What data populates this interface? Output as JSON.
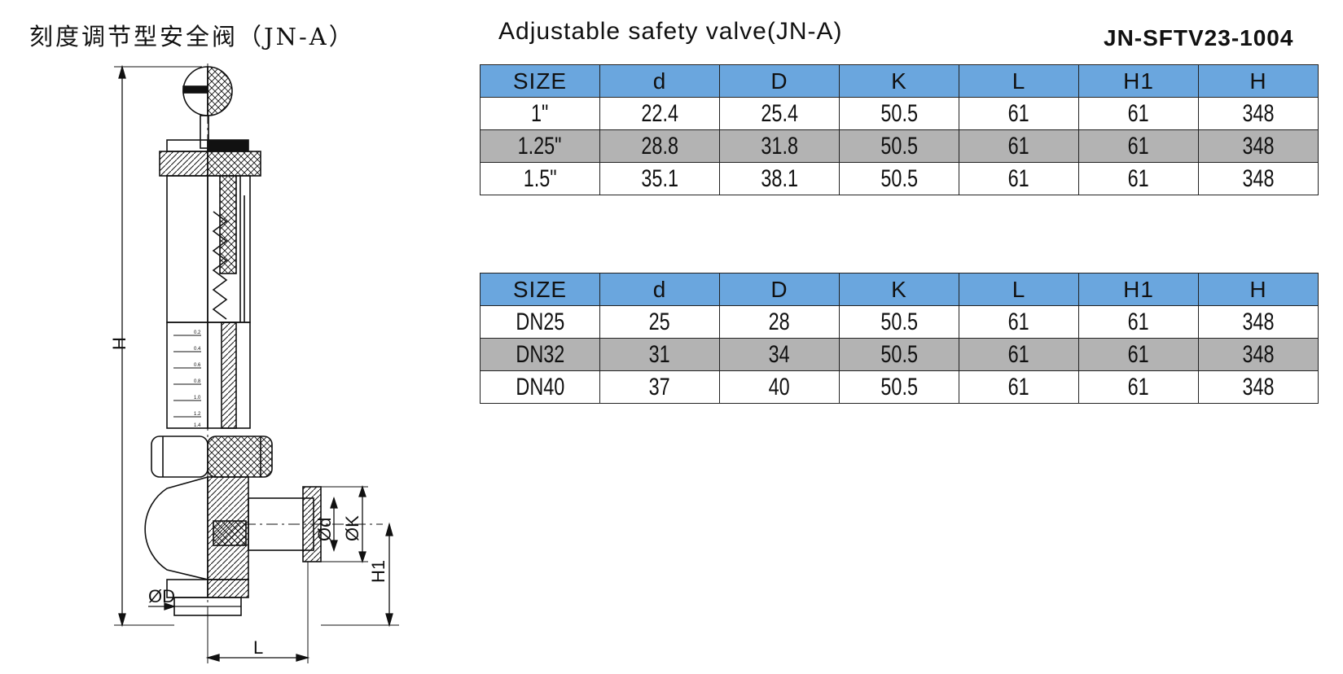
{
  "header": {
    "title_cn": "刻度调节型安全阀（JN-A）",
    "title_en": "Adjustable safety valve(JN-A)",
    "product_code": "JN-SFTV23-1004"
  },
  "colors": {
    "header_row": "#6aa6de",
    "alt_row": "#b3b3b3"
  },
  "drawing_labels": {
    "H": "H",
    "H1": "H1",
    "L": "L",
    "D": "ØD",
    "d": "Ød",
    "K": "ØK",
    "scale_marks": [
      "0.2",
      "0.4",
      "0.6",
      "0.8",
      "1.0",
      "1.2",
      "1.4"
    ]
  },
  "table1": {
    "headers": [
      "SIZE",
      "d",
      "D",
      "K",
      "L",
      "H1",
      "H"
    ],
    "rows": [
      [
        "1\"",
        "22.4",
        "25.4",
        "50.5",
        "61",
        "61",
        "348"
      ],
      [
        "1.25\"",
        "28.8",
        "31.8",
        "50.5",
        "61",
        "61",
        "348"
      ],
      [
        "1.5\"",
        "35.1",
        "38.1",
        "50.5",
        "61",
        "61",
        "348"
      ]
    ]
  },
  "table2": {
    "headers": [
      "SIZE",
      "d",
      "D",
      "K",
      "L",
      "H1",
      "H"
    ],
    "rows": [
      [
        "DN25",
        "25",
        "28",
        "50.5",
        "61",
        "61",
        "348"
      ],
      [
        "DN32",
        "31",
        "34",
        "50.5",
        "61",
        "61",
        "348"
      ],
      [
        "DN40",
        "37",
        "40",
        "50.5",
        "61",
        "61",
        "348"
      ]
    ]
  }
}
